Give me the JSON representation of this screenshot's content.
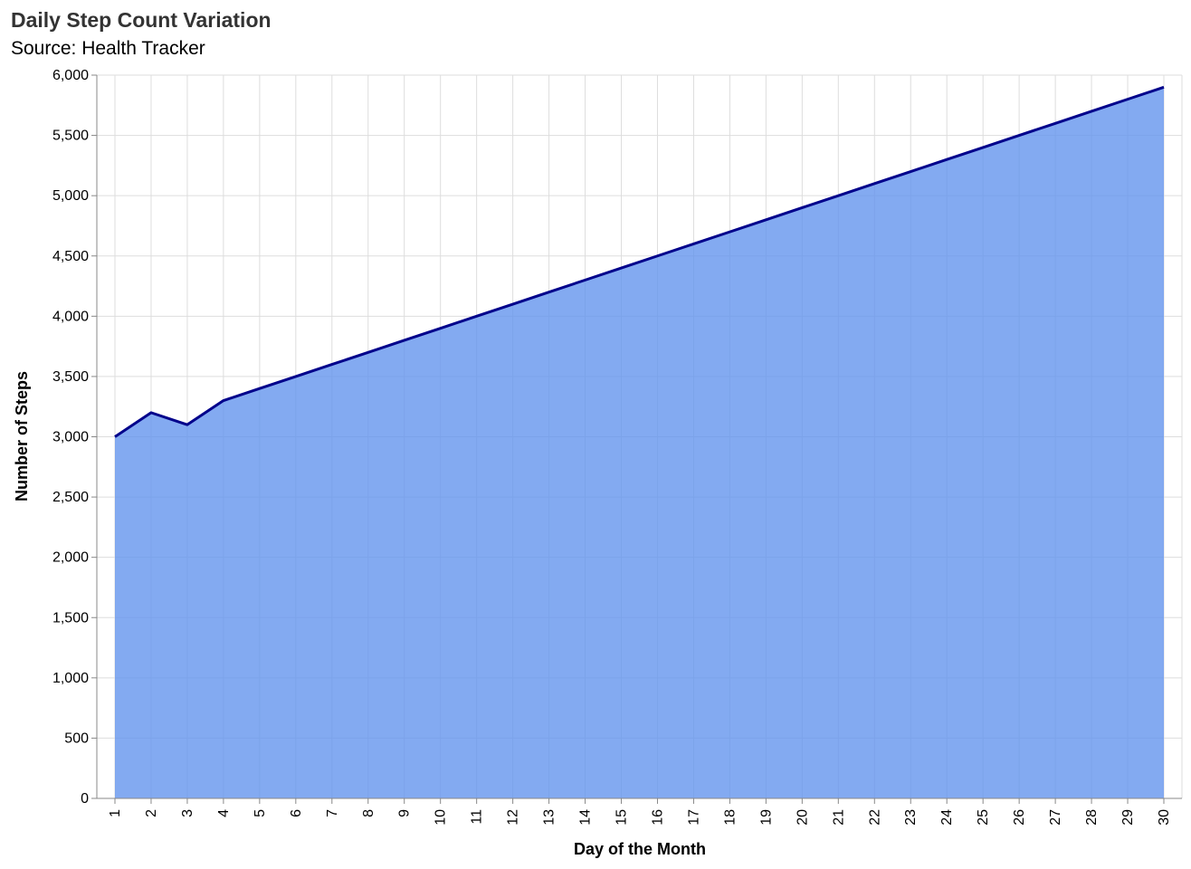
{
  "chart_data": {
    "type": "area",
    "title": "Daily Step Count Variation",
    "subtitle": "Source: Health Tracker",
    "xlabel": "Day of the Month",
    "ylabel": "Number of Steps",
    "x": [
      1,
      2,
      3,
      4,
      5,
      6,
      7,
      8,
      9,
      10,
      11,
      12,
      13,
      14,
      15,
      16,
      17,
      18,
      19,
      20,
      21,
      22,
      23,
      24,
      25,
      26,
      27,
      28,
      29,
      30
    ],
    "values": [
      3000,
      3200,
      3100,
      3300,
      3400,
      3500,
      3600,
      3700,
      3800,
      3900,
      4000,
      4100,
      4200,
      4300,
      4400,
      4500,
      4600,
      4700,
      4800,
      4900,
      5000,
      5100,
      5200,
      5300,
      5400,
      5500,
      5600,
      5700,
      5800,
      5900
    ],
    "xlim": [
      1,
      30
    ],
    "ylim": [
      0,
      6000
    ],
    "yticks": [
      0,
      500,
      1000,
      1500,
      2000,
      2500,
      3000,
      3500,
      4000,
      4500,
      5000,
      5500,
      6000
    ],
    "grid": true,
    "colors": {
      "area": "#6495ED",
      "line": "#00008B",
      "grid": "#dddddd",
      "axis": "#888888"
    }
  }
}
